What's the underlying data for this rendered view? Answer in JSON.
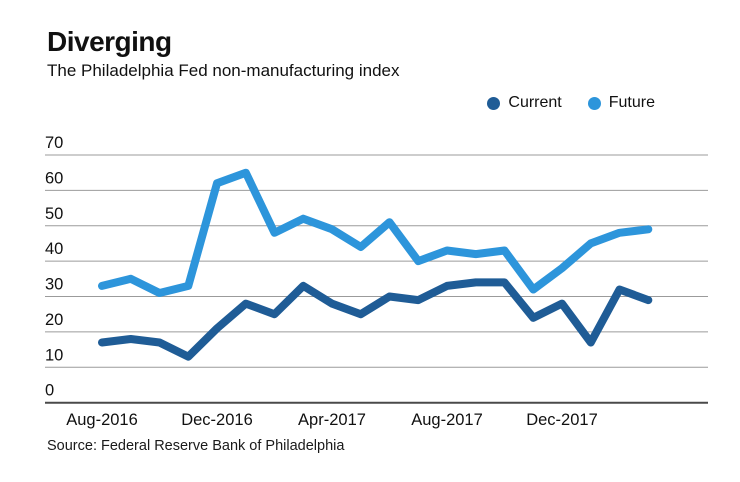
{
  "title": "Diverging",
  "subtitle": "The Philadelphia Fed non-manufacturing index",
  "source": "Source: Federal Reserve Bank of Philadelphia",
  "legend": [
    {
      "label": "Current",
      "color": "#1f5c96"
    },
    {
      "label": "Future",
      "color": "#2d95db"
    }
  ],
  "chart_data": {
    "type": "line",
    "title": "Diverging",
    "subtitle": "The Philadelphia Fed non-manufacturing index",
    "x": [
      "Aug-2016",
      "Sep-2016",
      "Oct-2016",
      "Nov-2016",
      "Dec-2016",
      "Jan-2017",
      "Feb-2017",
      "Mar-2017",
      "Apr-2017",
      "May-2017",
      "Jun-2017",
      "Jul-2017",
      "Aug-2017",
      "Sep-2017",
      "Oct-2017",
      "Nov-2017",
      "Dec-2017",
      "Jan-2018",
      "Feb-2018",
      "Mar-2018"
    ],
    "series": [
      {
        "name": "Current",
        "color": "#1f5c96",
        "values": [
          17,
          18,
          17,
          13,
          21,
          28,
          25,
          33,
          28,
          25,
          30,
          29,
          33,
          34,
          34,
          24,
          28,
          17,
          32,
          29
        ]
      },
      {
        "name": "Future",
        "color": "#2d95db",
        "values": [
          33,
          35,
          31,
          33,
          62,
          65,
          48,
          52,
          49,
          44,
          51,
          40,
          43,
          42,
          43,
          32,
          38,
          45,
          48,
          49
        ]
      }
    ],
    "xtick_labels": [
      "Aug-2016",
      "Dec-2016",
      "Apr-2017",
      "Aug-2017",
      "Dec-2017"
    ],
    "xtick_every": 4,
    "yticks": [
      0,
      10,
      20,
      30,
      40,
      50,
      60,
      70
    ],
    "ylim": [
      0,
      70
    ],
    "grid": true,
    "gridline_color": "#9b9b9b",
    "baseline_color": "#4a4a4a",
    "legend_position": "top-right",
    "line_width": 8
  }
}
